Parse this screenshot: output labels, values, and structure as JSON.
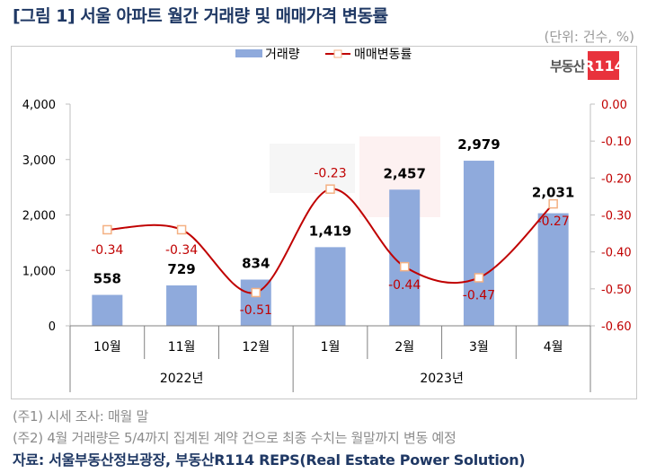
{
  "title": "[그림 1] 서울 아파트 월간 거래량 및 매매가격 변동률",
  "unit": "(단위: 건수, %)",
  "logo": {
    "text": "부동산",
    "badge": "R114",
    "badge_color": "#e8323c"
  },
  "notes": [
    "(주1) 시세 조사: 매월 말",
    "(주2) 4월 거래량은 5/4까지 집계된 계약 건으로 최종 수치는 월말까지 변동 예정"
  ],
  "source": "자료: 서울부동산정보광장, 부동산R114 REPS(Real Estate Power Solution)",
  "chart_data": {
    "type": "bar+line",
    "categories": [
      "10월",
      "11월",
      "12월",
      "1월",
      "2월",
      "3월",
      "4월"
    ],
    "groups": [
      {
        "label": "2022년",
        "span": 3
      },
      {
        "label": "2023년",
        "span": 4
      }
    ],
    "series": [
      {
        "name": "거래량",
        "type": "bar",
        "axis": "left",
        "color": "#8faadc",
        "values": [
          558,
          729,
          834,
          1419,
          2457,
          2979,
          2031
        ],
        "labels": [
          "558",
          "729",
          "834",
          "1,419",
          "2,457",
          "2,979",
          "2,031"
        ]
      },
      {
        "name": "매매변동률",
        "type": "line",
        "axis": "right",
        "color": "#c00000",
        "values": [
          -0.34,
          -0.34,
          -0.51,
          -0.23,
          -0.44,
          -0.47,
          -0.27
        ],
        "labels": [
          "-0.34",
          "-0.34",
          "-0.51",
          "-0.23",
          "-0.44",
          "-0.47",
          "-0.27"
        ]
      }
    ],
    "left_axis": {
      "ylim": [
        0,
        4000
      ],
      "ticks": [
        "0",
        "1,000",
        "2,000",
        "3,000",
        "4,000"
      ]
    },
    "right_axis": {
      "ylim": [
        -0.6,
        0
      ],
      "ticks": [
        "-0.60",
        "-0.50",
        "-0.40",
        "-0.30",
        "-0.20",
        "-0.10",
        "0.00"
      ],
      "color": "#c00000"
    },
    "grid": false,
    "legend": "top-center"
  }
}
